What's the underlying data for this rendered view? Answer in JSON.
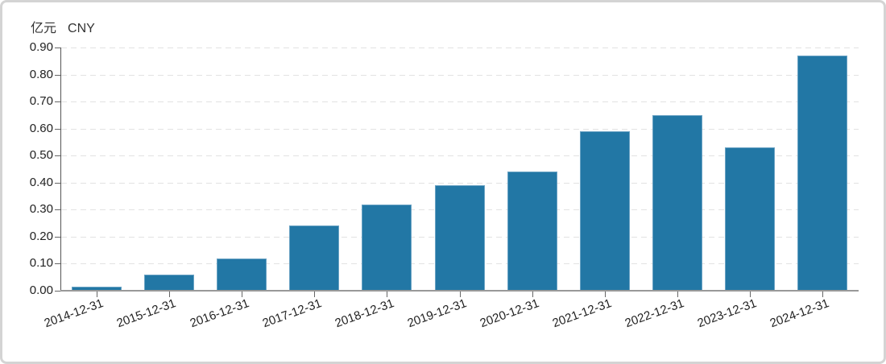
{
  "chart_data": {
    "type": "bar",
    "title": "",
    "unit_label_cn": "亿元",
    "unit_label_en": "CNY",
    "categories": [
      "2014-12-31",
      "2015-12-31",
      "2016-12-31",
      "2017-12-31",
      "2018-12-31",
      "2019-12-31",
      "2020-12-31",
      "2021-12-31",
      "2022-12-31",
      "2023-12-31",
      "2024-12-31"
    ],
    "values": [
      0.015,
      0.06,
      0.12,
      0.24,
      0.32,
      0.39,
      0.44,
      0.59,
      0.65,
      0.53,
      0.87
    ],
    "ylim": [
      0,
      0.9
    ],
    "ytick_step": 0.1,
    "ytick_labels": [
      "0.00",
      "0.10",
      "0.20",
      "0.30",
      "0.40",
      "0.50",
      "0.60",
      "0.70",
      "0.80",
      "0.90"
    ],
    "xlabel_rotation_deg": -20,
    "grid": "horizontal-dashed",
    "legend": "none",
    "colors": {
      "bar": "#2277a5",
      "bar_border": "#6ba3c4",
      "grid": "#e2e2e2",
      "x_axis": "#999999",
      "y_axis": "#555555",
      "tick_text": "#222222",
      "frame_border": "#d4d4d4",
      "background": "#ffffff"
    }
  }
}
